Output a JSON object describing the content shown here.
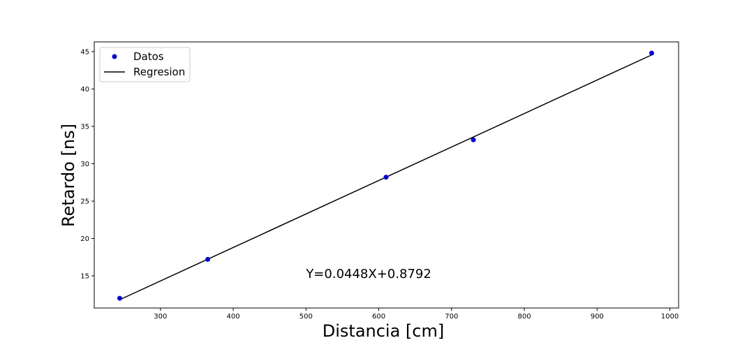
{
  "chart_data": {
    "type": "scatter",
    "title": "",
    "xlabel": "Distancia [cm]",
    "ylabel": "Retardo [ns]",
    "xlim": [
      209,
      1012
    ],
    "ylim": [
      10.7,
      46.3
    ],
    "xticks": [
      300,
      400,
      500,
      600,
      700,
      800,
      900,
      1000
    ],
    "yticks": [
      15,
      20,
      25,
      30,
      35,
      40,
      45
    ],
    "grid": false,
    "legend_position": "top-left",
    "series": [
      {
        "name": "Datos",
        "kind": "scatter",
        "color": "#0000cc",
        "x": [
          244,
          365,
          610,
          730,
          975
        ],
        "y": [
          12.0,
          17.2,
          28.2,
          33.2,
          44.8
        ]
      },
      {
        "name": "Regresion",
        "kind": "line",
        "color": "#000000",
        "x": [
          244,
          975
        ],
        "y": [
          11.81,
          44.56
        ]
      }
    ],
    "annotations": [
      {
        "text": "Y=0.0448X+0.8792",
        "x": 500,
        "y": 15.3
      }
    ]
  }
}
